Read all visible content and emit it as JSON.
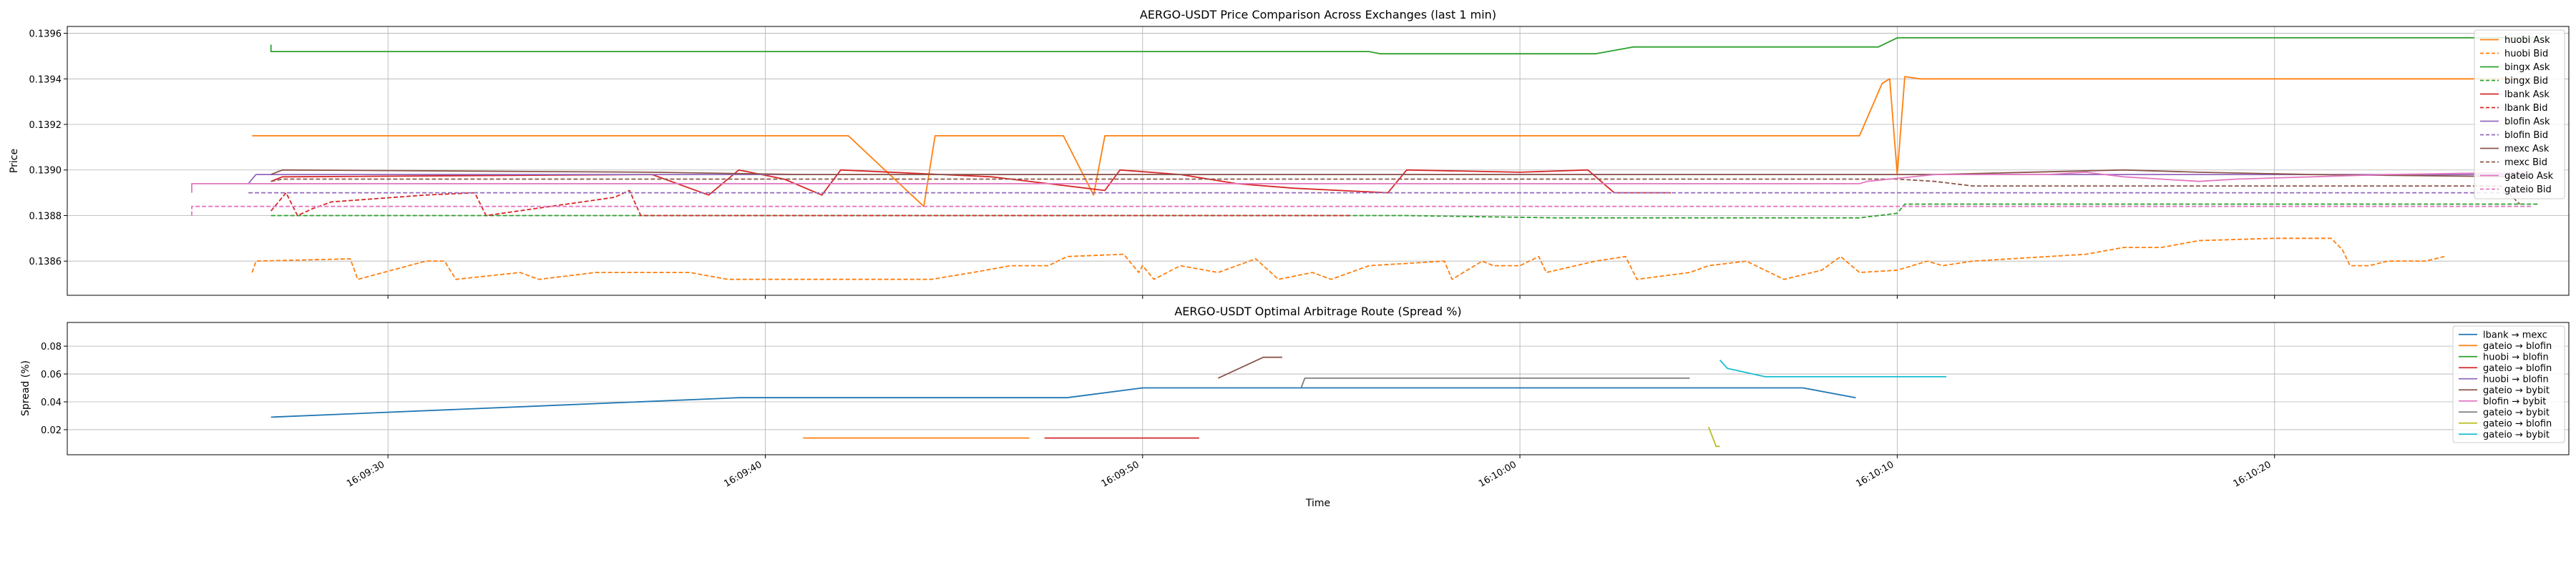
{
  "chart_data": [
    {
      "type": "line",
      "title": "AERGO-USDT Price Comparison Across Exchanges (last 1 min)",
      "xlabel": "",
      "ylabel": "Price",
      "ylim": [
        0.13845,
        0.13963
      ],
      "xlim": [
        20.5,
        86.8
      ],
      "x_unit": "seconds after 16:09:00",
      "yticks": [
        {
          "v": 0.1386,
          "label": "0.1386"
        },
        {
          "v": 0.1388,
          "label": "0.1388"
        },
        {
          "v": 0.139,
          "label": "0.1390"
        },
        {
          "v": 0.1392,
          "label": "0.1392"
        },
        {
          "v": 0.1394,
          "label": "0.1394"
        },
        {
          "v": 0.1396,
          "label": "0.1396"
        }
      ],
      "xticks": [
        {
          "v": 29,
          "label": "16:09:30"
        },
        {
          "v": 39,
          "label": "16:09:40"
        },
        {
          "v": 49,
          "label": "16:09:50"
        },
        {
          "v": 59,
          "label": "16:10:00"
        },
        {
          "v": 69,
          "label": "16:10:10"
        },
        {
          "v": 79,
          "label": "16:10:20"
        }
      ],
      "grid": true,
      "legend_position": "right",
      "series": [
        {
          "name": "huobi Ask",
          "color": "#ff7f0e",
          "dash": false,
          "points": [
            [
              25.4,
              0.13915
            ],
            [
              41.2,
              0.13915
            ],
            [
              43.2,
              0.13884
            ],
            [
              43.5,
              0.13915
            ],
            [
              46.9,
              0.13915
            ],
            [
              47.7,
              0.13889
            ],
            [
              48.0,
              0.13915
            ],
            [
              68.0,
              0.13915
            ],
            [
              68.6,
              0.13938
            ],
            [
              68.8,
              0.1394
            ],
            [
              69.0,
              0.13898
            ],
            [
              69.2,
              0.13941
            ],
            [
              69.6,
              0.1394
            ],
            [
              85.8,
              0.1394
            ]
          ]
        },
        {
          "name": "huobi Bid",
          "color": "#ff7f0e",
          "dash": true,
          "points": [
            [
              25.4,
              0.13855
            ],
            [
              25.5,
              0.1386
            ],
            [
              28.0,
              0.13861
            ],
            [
              28.2,
              0.13852
            ],
            [
              30.0,
              0.1386
            ],
            [
              30.5,
              0.1386
            ],
            [
              30.8,
              0.13852
            ],
            [
              32.5,
              0.13855
            ],
            [
              33.0,
              0.13852
            ],
            [
              34.5,
              0.13855
            ],
            [
              36.0,
              0.13855
            ],
            [
              37.0,
              0.13855
            ],
            [
              38.0,
              0.13852
            ],
            [
              42.9,
              0.13852
            ],
            [
              43.4,
              0.13852
            ],
            [
              44.5,
              0.13855
            ],
            [
              45.5,
              0.13858
            ],
            [
              46.5,
              0.13858
            ],
            [
              47.0,
              0.13862
            ],
            [
              48.5,
              0.13863
            ],
            [
              48.9,
              0.13855
            ],
            [
              49.0,
              0.13858
            ],
            [
              49.3,
              0.13852
            ],
            [
              50.0,
              0.13858
            ],
            [
              51.0,
              0.13855
            ],
            [
              52.0,
              0.13861
            ],
            [
              52.6,
              0.13852
            ],
            [
              53.5,
              0.13855
            ],
            [
              54.0,
              0.13852
            ],
            [
              55.0,
              0.13858
            ],
            [
              57.0,
              0.1386
            ],
            [
              57.2,
              0.13852
            ],
            [
              58.0,
              0.1386
            ],
            [
              58.3,
              0.13858
            ],
            [
              59.0,
              0.13858
            ],
            [
              59.5,
              0.13862
            ],
            [
              59.7,
              0.13855
            ],
            [
              61.0,
              0.1386
            ],
            [
              61.8,
              0.13862
            ],
            [
              62.1,
              0.13852
            ],
            [
              63.5,
              0.13855
            ],
            [
              64.0,
              0.13858
            ],
            [
              65.0,
              0.1386
            ],
            [
              66.0,
              0.13852
            ],
            [
              67.0,
              0.13856
            ],
            [
              67.5,
              0.13862
            ],
            [
              68.0,
              0.13855
            ],
            [
              69.0,
              0.13856
            ],
            [
              69.8,
              0.1386
            ],
            [
              70.2,
              0.13858
            ],
            [
              71.0,
              0.1386
            ],
            [
              73.0,
              0.13862
            ],
            [
              74.0,
              0.13863
            ],
            [
              75.0,
              0.13866
            ],
            [
              76.0,
              0.13866
            ],
            [
              77.0,
              0.13869
            ],
            [
              79.0,
              0.1387
            ],
            [
              80.5,
              0.1387
            ],
            [
              80.8,
              0.13865
            ],
            [
              81.0,
              0.13858
            ],
            [
              81.5,
              0.13858
            ],
            [
              82.0,
              0.1386
            ],
            [
              83.0,
              0.1386
            ],
            [
              83.5,
              0.13862
            ]
          ]
        },
        {
          "name": "bingx Ask",
          "color": "#2ca02c",
          "dash": false,
          "points": [
            [
              25.9,
              0.13955
            ],
            [
              25.9,
              0.13952
            ],
            [
              50.5,
              0.13952
            ],
            [
              55.0,
              0.13952
            ],
            [
              55.3,
              0.13951
            ],
            [
              61.0,
              0.13951
            ],
            [
              62.0,
              0.13954
            ],
            [
              68.5,
              0.13954
            ],
            [
              69.0,
              0.13958
            ],
            [
              86.0,
              0.13958
            ]
          ]
        },
        {
          "name": "bingx Bid",
          "color": "#2ca02c",
          "dash": true,
          "points": [
            [
              25.9,
              0.1388
            ],
            [
              56.0,
              0.1388
            ],
            [
              60.0,
              0.13879
            ],
            [
              68.0,
              0.13879
            ],
            [
              69.0,
              0.13881
            ],
            [
              69.2,
              0.13885
            ],
            [
              86.0,
              0.13885
            ]
          ]
        },
        {
          "name": "lbank Ask",
          "color": "#d62728",
          "dash": false,
          "points": [
            [
              25.9,
              0.13895
            ],
            [
              26.2,
              0.13897
            ],
            [
              36.0,
              0.13898
            ],
            [
              37.5,
              0.13889
            ],
            [
              38.3,
              0.139
            ],
            [
              39.5,
              0.13896
            ],
            [
              40.5,
              0.13889
            ],
            [
              41.0,
              0.139
            ],
            [
              45.0,
              0.13897
            ],
            [
              48.0,
              0.13891
            ],
            [
              48.4,
              0.139
            ],
            [
              50.0,
              0.13898
            ],
            [
              51.5,
              0.13894
            ],
            [
              53.0,
              0.13892
            ],
            [
              55.5,
              0.1389
            ],
            [
              56.0,
              0.139
            ],
            [
              59.0,
              0.13899
            ],
            [
              60.8,
              0.139
            ],
            [
              61.5,
              0.1389
            ],
            [
              63.0,
              0.1389
            ]
          ]
        },
        {
          "name": "lbank Bid",
          "color": "#d62728",
          "dash": true,
          "points": [
            [
              25.9,
              0.13882
            ],
            [
              26.3,
              0.1389
            ],
            [
              26.6,
              0.1388
            ],
            [
              27.0,
              0.13883
            ],
            [
              27.5,
              0.13886
            ],
            [
              30.0,
              0.13889
            ],
            [
              31.3,
              0.1389
            ],
            [
              31.6,
              0.1388
            ],
            [
              35.0,
              0.13888
            ],
            [
              35.4,
              0.13891
            ],
            [
              35.7,
              0.1388
            ],
            [
              54.5,
              0.1388
            ]
          ]
        },
        {
          "name": "blofin Ask",
          "color": "#9467bd",
          "dash": false,
          "points": [
            [
              25.3,
              0.13894
            ],
            [
              25.5,
              0.13898
            ],
            [
              85.8,
              0.13898
            ]
          ]
        },
        {
          "name": "blofin Bid",
          "color": "#9467bd",
          "dash": true,
          "points": [
            [
              25.3,
              0.1389
            ],
            [
              85.8,
              0.1389
            ]
          ]
        },
        {
          "name": "mexc Ask",
          "color": "#8c564b",
          "dash": false,
          "points": [
            [
              25.9,
              0.13898
            ],
            [
              26.2,
              0.139
            ],
            [
              36.0,
              0.13899
            ],
            [
              40.0,
              0.13898
            ],
            [
              60.0,
              0.13898
            ],
            [
              70.0,
              0.13898
            ],
            [
              75.0,
              0.139
            ],
            [
              77.0,
              0.13899
            ],
            [
              80.0,
              0.13898
            ],
            [
              85.8,
              0.13897
            ]
          ]
        },
        {
          "name": "mexc Bid",
          "color": "#8c564b",
          "dash": true,
          "points": [
            [
              25.9,
              0.13895
            ],
            [
              26.2,
              0.13896
            ],
            [
              69.0,
              0.13896
            ],
            [
              70.0,
              0.13895
            ],
            [
              71.0,
              0.13893
            ],
            [
              80.0,
              0.13893
            ],
            [
              85.0,
              0.13893
            ],
            [
              85.5,
              0.13885
            ]
          ]
        },
        {
          "name": "gateio Ask",
          "color": "#e377c2",
          "dash": false,
          "points": [
            [
              23.8,
              0.1389
            ],
            [
              23.8,
              0.13894
            ],
            [
              41.0,
              0.13894
            ],
            [
              60.0,
              0.13894
            ],
            [
              68.0,
              0.13894
            ],
            [
              68.2,
              0.13895
            ],
            [
              70.0,
              0.13898
            ],
            [
              73.0,
              0.13898
            ],
            [
              74.0,
              0.13899
            ],
            [
              75.0,
              0.13897
            ],
            [
              77.0,
              0.13895
            ],
            [
              78.0,
              0.13896
            ],
            [
              80.0,
              0.13897
            ],
            [
              82.0,
              0.13898
            ],
            [
              85.8,
              0.13899
            ]
          ]
        },
        {
          "name": "gateio Bid",
          "color": "#e377c2",
          "dash": true,
          "points": [
            [
              23.8,
              0.1388
            ],
            [
              23.8,
              0.13884
            ],
            [
              85.8,
              0.13884
            ]
          ]
        }
      ],
      "legend": [
        "huobi Ask",
        "huobi Bid",
        "bingx Ask",
        "bingx Bid",
        "lbank Ask",
        "lbank Bid",
        "blofin Ask",
        "blofin Bid",
        "mexc Ask",
        "mexc Bid",
        "gateio Ask",
        "gateio Bid"
      ]
    },
    {
      "type": "line",
      "title": "AERGO-USDT Optimal Arbitrage Route (Spread %)",
      "xlabel": "Time",
      "ylabel": "Spread (%)",
      "ylim": [
        0.002,
        0.097
      ],
      "xlim": [
        20.5,
        86.8
      ],
      "yticks": [
        {
          "v": 0.02,
          "label": "0.02"
        },
        {
          "v": 0.04,
          "label": "0.04"
        },
        {
          "v": 0.06,
          "label": "0.06"
        },
        {
          "v": 0.08,
          "label": "0.08"
        }
      ],
      "xticks": [
        {
          "v": 29,
          "label": "16:09:30"
        },
        {
          "v": 39,
          "label": "16:09:40"
        },
        {
          "v": 49,
          "label": "16:09:50"
        },
        {
          "v": 59,
          "label": "16:10:00"
        },
        {
          "v": 69,
          "label": "16:10:10"
        },
        {
          "v": 79,
          "label": "16:10:20"
        }
      ],
      "grid": true,
      "legend_position": "right",
      "series": [
        {
          "name": "lbank → mexc",
          "color": "#1f77b4",
          "points": [
            [
              25.9,
              0.029
            ],
            [
              38.3,
              0.043
            ],
            [
              47.0,
              0.043
            ],
            [
              49.0,
              0.05
            ],
            [
              66.5,
              0.05
            ],
            [
              67.9,
              0.043
            ]
          ]
        },
        {
          "name": "gateio → blofin",
          "color": "#ff7f0e",
          "points": [
            [
              40.0,
              0.014
            ],
            [
              46.0,
              0.014
            ]
          ]
        },
        {
          "name": "huobi → blofin",
          "color": "#2ca02c",
          "points": []
        },
        {
          "name": "gateio → blofin",
          "color": "#d62728",
          "points": [
            [
              46.4,
              0.014
            ],
            [
              50.5,
              0.014
            ]
          ]
        },
        {
          "name": "huobi → blofin",
          "color": "#9467bd",
          "points": []
        },
        {
          "name": "gateio → bybit",
          "color": "#8c564b",
          "points": [
            [
              51.0,
              0.057
            ],
            [
              52.2,
              0.072
            ],
            [
              52.7,
              0.072
            ]
          ]
        },
        {
          "name": "blofin → bybit",
          "color": "#e377c2",
          "points": []
        },
        {
          "name": "gateio → bybit",
          "color": "#7f7f7f",
          "points": [
            [
              53.2,
              0.05
            ],
            [
              53.3,
              0.057
            ],
            [
              63.5,
              0.057
            ]
          ]
        },
        {
          "name": "gateio → blofin",
          "color": "#bcbd22",
          "points": [
            [
              64.0,
              0.022
            ],
            [
              64.2,
              0.008
            ],
            [
              64.3,
              0.008
            ]
          ]
        },
        {
          "name": "gateio → bybit",
          "color": "#17becf",
          "points": [
            [
              64.3,
              0.07
            ],
            [
              64.5,
              0.064
            ],
            [
              65.5,
              0.058
            ],
            [
              70.3,
              0.058
            ]
          ]
        }
      ],
      "legend": [
        "lbank → mexc",
        "gateio → blofin",
        "huobi → blofin",
        "gateio → blofin",
        "huobi → blofin",
        "gateio → bybit",
        "blofin → bybit",
        "gateio → bybit",
        "gateio → blofin",
        "gateio → bybit"
      ]
    }
  ]
}
